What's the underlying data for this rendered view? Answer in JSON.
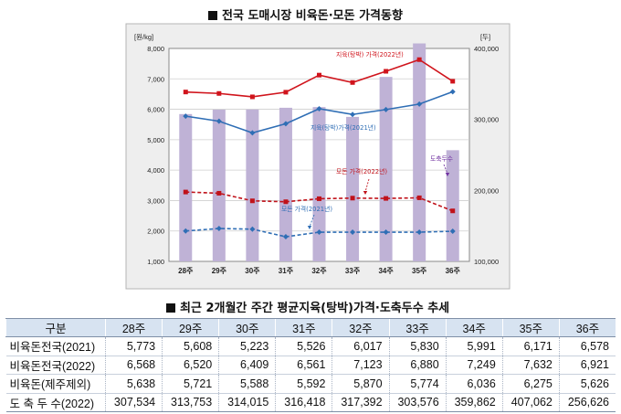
{
  "chart_title": "전국 도매시장 비육돈·모돈 가격동향",
  "table_title": "최근 2개월간 주간 평균지육(탕박)가격·도축두수 추세",
  "chart_data": {
    "type": "bar+line",
    "categories": [
      "28주",
      "29주",
      "30주",
      "31주",
      "32주",
      "33주",
      "34주",
      "35주",
      "36주"
    ],
    "y_left": {
      "unit": "[원/kg]",
      "min": 1000,
      "max": 8000,
      "ticks": [
        "1,000",
        "2,000",
        "3,000",
        "4,000",
        "5,000",
        "6,000",
        "7,000",
        "8,000"
      ]
    },
    "y_right": {
      "unit": "[두]",
      "min": 100000,
      "max": 400000,
      "ticks": [
        "100,000",
        "200,000",
        "300,000",
        "400,000"
      ]
    },
    "bars": {
      "name": "도축두수",
      "values": [
        307534,
        313753,
        314015,
        316418,
        317392,
        303576,
        359862,
        407062,
        256626
      ]
    },
    "lines": [
      {
        "name": "지육(탕박) 가격(2022년)",
        "values": [
          6568,
          6520,
          6409,
          6561,
          7123,
          6880,
          7249,
          7632,
          6921
        ],
        "color": "#d0141c",
        "dash": false,
        "marker": "square"
      },
      {
        "name": "지육(탕박)가격(2021년)",
        "values": [
          5773,
          5608,
          5223,
          5526,
          6017,
          5830,
          5991,
          6171,
          6578
        ],
        "color": "#2f6eb5",
        "dash": false,
        "marker": "diamond"
      },
      {
        "name": "모돈 가격(2022년)",
        "values": [
          3280,
          3240,
          2990,
          2960,
          3060,
          3080,
          3070,
          3090,
          2660
        ],
        "color": "#c0121a",
        "dash": true,
        "marker": "square"
      },
      {
        "name": "모돈 가격(2021년)",
        "values": [
          2000,
          2080,
          2060,
          1810,
          1960,
          1960,
          1960,
          1960,
          1990
        ],
        "color": "#2f6eb5",
        "dash": true,
        "marker": "diamond"
      }
    ],
    "bar_color": "#bfb2d6",
    "grid": true
  },
  "table": {
    "headers": [
      "구분",
      "28주",
      "29주",
      "30주",
      "31주",
      "32주",
      "33주",
      "34주",
      "35주",
      "36주"
    ],
    "rows": [
      {
        "label": "비육돈전국(2021)",
        "values": [
          "5,773",
          "5,608",
          "5,223",
          "5,526",
          "6,017",
          "5,830",
          "5,991",
          "6,171",
          "6,578"
        ]
      },
      {
        "label": "비육돈전국(2022)",
        "values": [
          "6,568",
          "6,520",
          "6,409",
          "6,561",
          "7,123",
          "6,880",
          "7,249",
          "7,632",
          "6,921"
        ]
      },
      {
        "label": "비육돈(제주제외)",
        "values": [
          "5,638",
          "5,721",
          "5,588",
          "5,592",
          "5,870",
          "5,774",
          "6,036",
          "6,275",
          "5,626"
        ]
      },
      {
        "label": "도 축 두 수(2022)",
        "values": [
          "307,534",
          "313,753",
          "314,015",
          "316,418",
          "317,392",
          "303,576",
          "359,862",
          "407,062",
          "256,626"
        ]
      }
    ]
  }
}
